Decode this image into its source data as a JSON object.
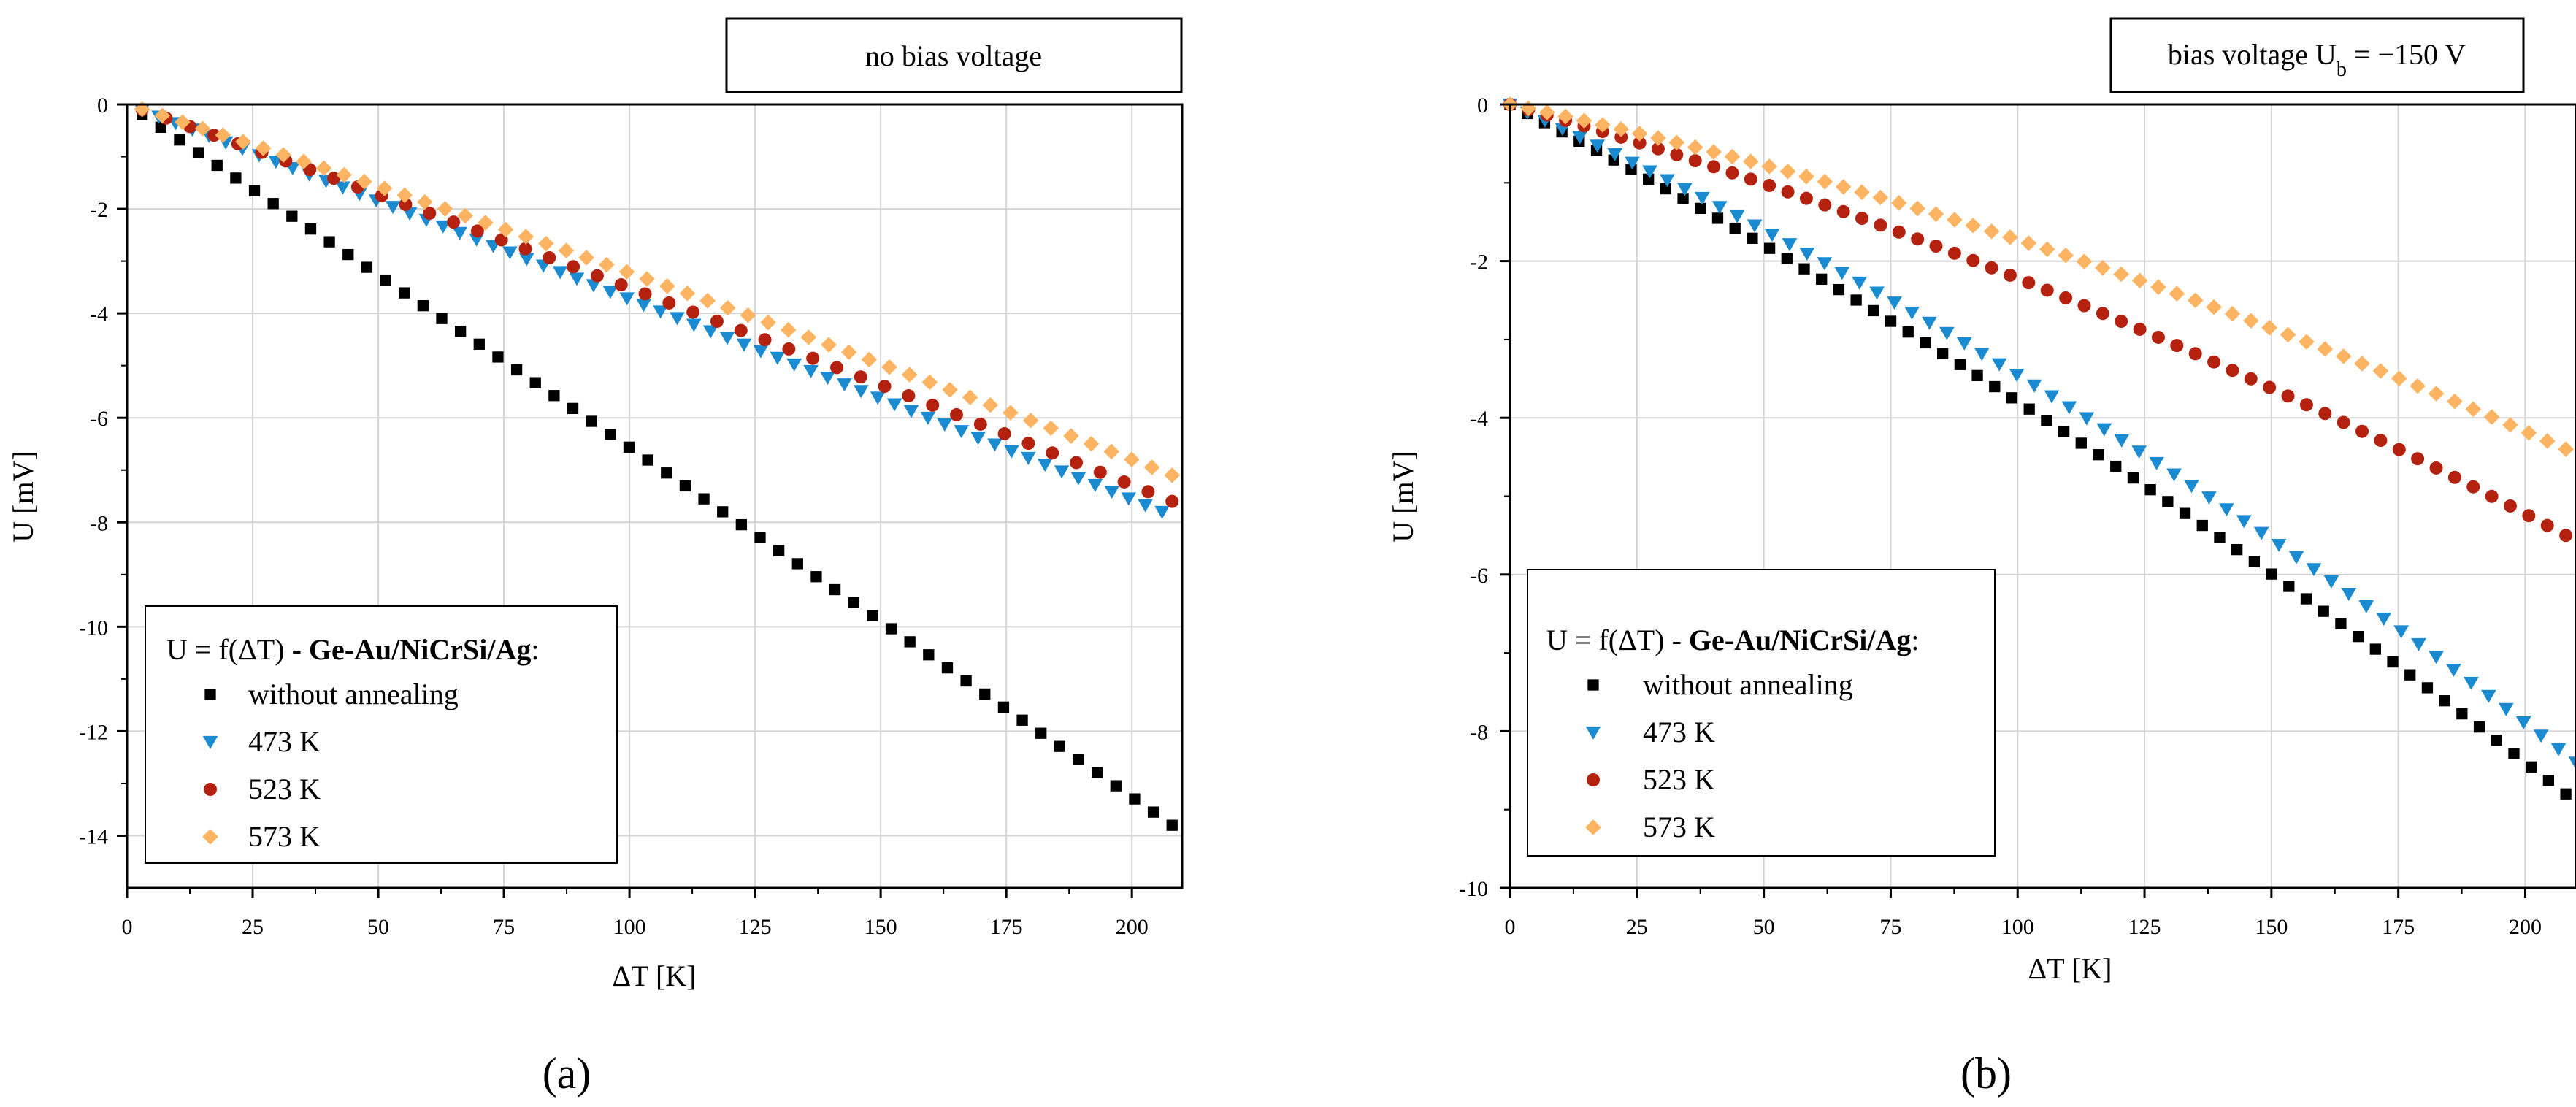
{
  "colors": {
    "without_annealing": "#000000",
    "473K": "#1b8bd1",
    "523K": "#b5210f",
    "573K": "#fcb462",
    "grid": "#d4d4d4"
  },
  "legend": {
    "title_prefix": "U = f(ΔT) - ",
    "title_bold": "Ge-Au/NiCrSi/Ag",
    "title_suffix": ":",
    "entries": [
      "without annealing",
      "473 K",
      "523 K",
      "573 K"
    ]
  },
  "chart_data": [
    {
      "type": "scatter",
      "panel_label": "(a)",
      "title_box": {
        "text": "no bias voltage"
      },
      "xlabel": "ΔT [K]",
      "ylabel": "U [mV]",
      "xlim": [
        0,
        210
      ],
      "ylim": [
        -15,
        0
      ],
      "xticks": [
        0,
        25,
        50,
        75,
        100,
        125,
        150,
        175,
        200
      ],
      "xtick_labels": [
        "0",
        "25",
        "50",
        "75",
        "100",
        "125",
        "150",
        "175",
        "200"
      ],
      "yticks": [
        0,
        -2,
        -4,
        -6,
        -8,
        -10,
        -12,
        -14
      ],
      "ytick_labels": [
        "0",
        "-2",
        "-4",
        "-6",
        "-8",
        "-10",
        "-12",
        "-14"
      ],
      "series": [
        {
          "name": "without annealing",
          "marker": "square",
          "x_start": 3,
          "x_end": 208,
          "n": 56,
          "y_end": -13.8,
          "curvature": 0.02
        },
        {
          "name": "473 K",
          "marker": "triangle-down",
          "x_start": 3,
          "x_end": 206,
          "n": 62,
          "y_end": -7.8,
          "curvature": 0.03
        },
        {
          "name": "523 K",
          "marker": "circle",
          "x_start": 3,
          "x_end": 208,
          "n": 44,
          "y_end": -7.6,
          "curvature": 0.08
        },
        {
          "name": "573 K",
          "marker": "diamond",
          "x_start": 3,
          "x_end": 208,
          "n": 52,
          "y_end": -7.1,
          "curvature": 0.12
        }
      ]
    },
    {
      "type": "scatter",
      "panel_label": "(b)",
      "title_box": {
        "text": "bias voltage U",
        "subscript": "b",
        "suffix": " = −150 V"
      },
      "xlabel": "ΔT [K]",
      "ylabel": "U [mV]",
      "xlim": [
        0,
        210
      ],
      "ylim": [
        -10,
        0
      ],
      "xticks": [
        0,
        25,
        50,
        75,
        100,
        125,
        150,
        175,
        200
      ],
      "xtick_labels": [
        "0",
        "25",
        "50",
        "75",
        "100",
        "125",
        "150",
        "175",
        "200"
      ],
      "yticks": [
        0,
        -2,
        -4,
        -6,
        -8,
        -10
      ],
      "ytick_labels": [
        "0",
        "-2",
        "-4",
        "-6",
        "-8",
        "-10"
      ],
      "series": [
        {
          "name": "without annealing",
          "marker": "square",
          "x_start": 0,
          "x_end": 208,
          "n": 62,
          "y_end": -8.8,
          "curvature": 0.25
        },
        {
          "name": "473 K",
          "marker": "triangle-down",
          "x_start": 0,
          "x_end": 210,
          "n": 62,
          "y_end": -8.4,
          "curvature": 0.35
        },
        {
          "name": "523 K",
          "marker": "circle",
          "x_start": 0,
          "x_end": 208,
          "n": 58,
          "y_end": -5.5,
          "curvature": 0.45
        },
        {
          "name": "573 K",
          "marker": "diamond",
          "x_start": 0,
          "x_end": 208,
          "n": 58,
          "y_end": -4.4,
          "curvature": 0.55
        }
      ]
    }
  ]
}
